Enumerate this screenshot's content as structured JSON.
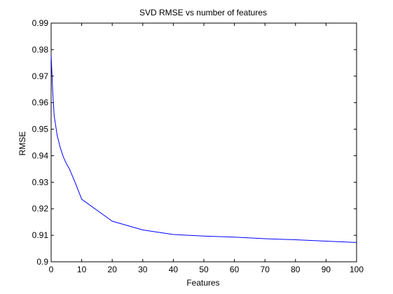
{
  "chart_data": {
    "type": "line",
    "title": "SVD RMSE vs number of features",
    "xlabel": "Features",
    "ylabel": "RMSE",
    "xlim": [
      0,
      100
    ],
    "ylim": [
      0.9,
      0.99
    ],
    "xticks": [
      0,
      10,
      20,
      30,
      40,
      50,
      60,
      70,
      80,
      90,
      100
    ],
    "yticks": [
      0.9,
      0.91,
      0.92,
      0.93,
      0.94,
      0.95,
      0.96,
      0.97,
      0.98,
      0.99
    ],
    "grid": false,
    "series": [
      {
        "color": "#0000ff",
        "x": [
          0,
          0.5,
          1,
          2,
          3,
          4,
          5,
          6,
          8,
          10,
          20,
          30,
          40,
          50,
          60,
          70,
          80,
          90,
          100
        ],
        "y": [
          0.978,
          0.9645,
          0.955,
          0.9475,
          0.943,
          0.9395,
          0.937,
          0.935,
          0.9295,
          0.9236,
          0.9153,
          0.912,
          0.9103,
          0.9097,
          0.9093,
          0.9087,
          0.9083,
          0.9078,
          0.9073
        ]
      }
    ]
  }
}
